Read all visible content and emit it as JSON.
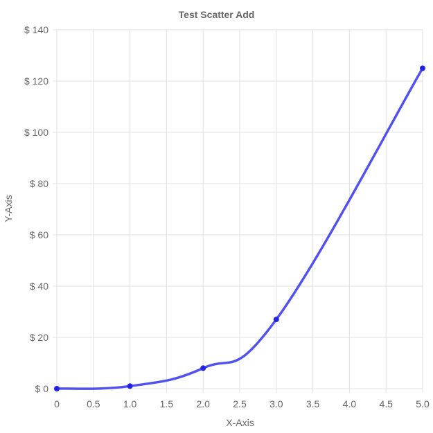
{
  "chart_data": {
    "type": "line",
    "title": "Test Scatter Add",
    "xlabel": "X-Axis",
    "ylabel": "Y-Axis",
    "xlim": [
      0,
      5
    ],
    "ylim": [
      0,
      140
    ],
    "xticks": [
      0,
      0.5,
      1,
      1.5,
      2,
      2.5,
      3,
      3.5,
      4,
      4.5,
      5
    ],
    "xtick_labels": [
      "0",
      "0.5",
      "1.0",
      "1.5",
      "2.0",
      "2.5",
      "3.0",
      "3.5",
      "4.0",
      "4.5",
      "5.0"
    ],
    "yticks": [
      0,
      20,
      40,
      60,
      80,
      100,
      120,
      140
    ],
    "ytick_labels": [
      "$ 0",
      "$ 20",
      "$ 40",
      "$ 60",
      "$ 80",
      "$ 100",
      "$ 120",
      "$ 140"
    ],
    "grid": true,
    "legend": false,
    "series": [
      {
        "x": [
          0,
          1,
          2,
          3,
          5
        ],
        "y": [
          0,
          1,
          8,
          27,
          125
        ],
        "color": "#5150f0",
        "marker_color": "#2323e6"
      }
    ],
    "colors": {
      "grid": "#e1e1e1",
      "text": "#666666"
    }
  }
}
